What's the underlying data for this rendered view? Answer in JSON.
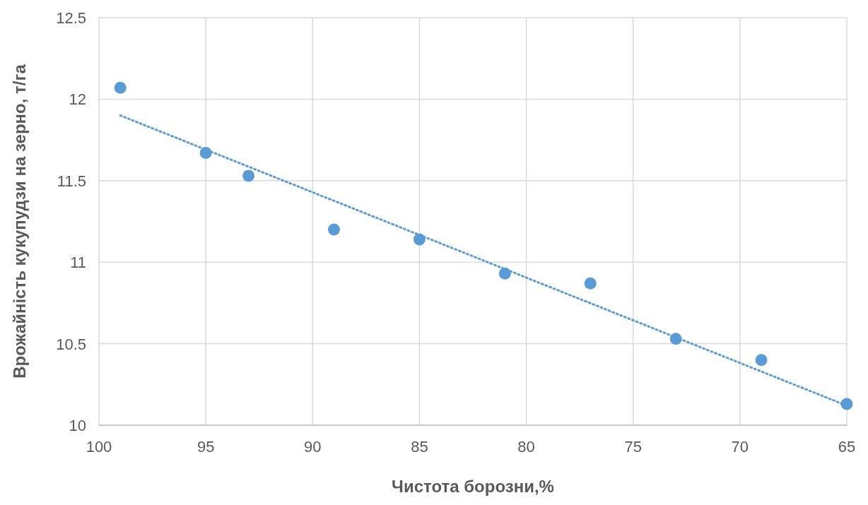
{
  "chart_data": {
    "type": "scatter",
    "xlabel": "Чистота борозни,%",
    "ylabel": "Врожайність кукупудзи на зерно, т/га",
    "xlim": [
      100,
      65
    ],
    "xticks": [
      100,
      95,
      90,
      85,
      80,
      75,
      70,
      65
    ],
    "ylim": [
      10,
      12.5
    ],
    "yticks": [
      10,
      10.5,
      11,
      11.5,
      12,
      12.5
    ],
    "grid": true,
    "series": [
      {
        "color": "#5b9bd5",
        "marker": "circle",
        "x": [
          99,
          95,
          93,
          89,
          85,
          81,
          77,
          73,
          69,
          65
        ],
        "values": [
          12.07,
          11.67,
          11.53,
          11.2,
          11.14,
          10.93,
          10.87,
          10.53,
          10.4,
          10.13
        ]
      },
      {
        "type": "line",
        "color": "#5b9bd5",
        "line_style": "dotted",
        "x": [
          99,
          65
        ],
        "values": [
          11.9,
          10.12
        ]
      }
    ]
  }
}
